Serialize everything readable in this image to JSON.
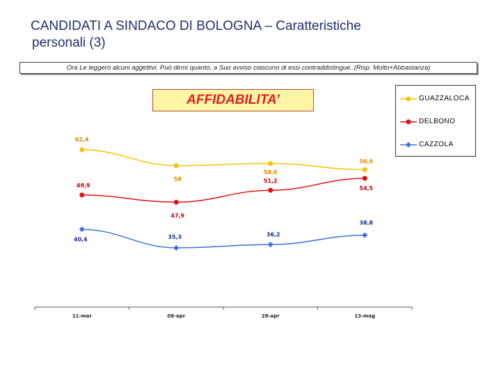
{
  "slide": {
    "title_line1": "CANDIDATI A SINDACO DI BOLOGNA – Caratteristiche",
    "title_line2": "personali (3)",
    "question": "Ora Le leggerò alcuni aggettivi. Può dirmi quanto, a Suo avviso ciascuno di essi contraddistingue..(Risp. Molto+Abbastanza)"
  },
  "chart_data": {
    "type": "line",
    "title": "AFFIDABILITA’",
    "categories": [
      "11-mar",
      "08-apr",
      "28-apr",
      "13-mag"
    ],
    "series": [
      {
        "name": "GUAZZALOCA",
        "values": [
          62.4,
          58,
          58.6,
          56.9
        ],
        "labels": [
          "62,4",
          "58",
          "58,6",
          "56,9"
        ],
        "color": "#f5c400",
        "label_color": "#e08a00",
        "marker": "circle"
      },
      {
        "name": "DELBONO",
        "values": [
          49.9,
          47.9,
          51.2,
          54.5
        ],
        "labels": [
          "49,9",
          "47,9",
          "51,2",
          "54,5"
        ],
        "color": "#e01010",
        "label_color": "#c00000",
        "marker": "circle"
      },
      {
        "name": "CAZZOLA",
        "values": [
          40.4,
          35.3,
          36.2,
          38.8
        ],
        "labels": [
          "40,4",
          "35,3",
          "36,2",
          "38,8"
        ],
        "color": "#3a6ee0",
        "label_color": "#1a2a90",
        "marker": "diamond"
      }
    ],
    "legend_position": "top-right",
    "grid": false,
    "y_axis_visible": false
  }
}
